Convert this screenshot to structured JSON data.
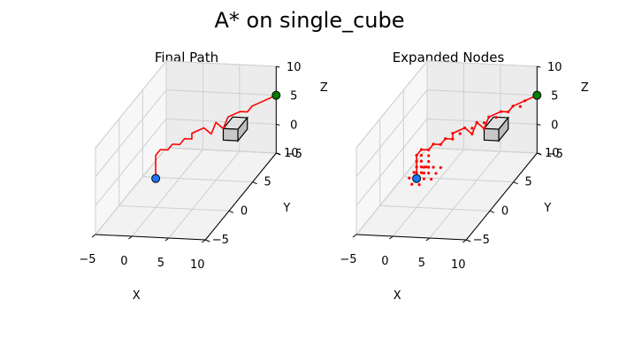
{
  "figure": {
    "title": "A* on single_cube"
  },
  "chart_data": [
    {
      "type": "line3d",
      "title": "Final Path",
      "xlabel": "X",
      "ylabel": "Y",
      "zlabel": "Z",
      "xlim": [
        -5,
        10
      ],
      "ylim": [
        -5,
        10
      ],
      "zlim": [
        -5,
        10
      ],
      "xticks": [
        "−5",
        "0",
        "5",
        "10"
      ],
      "yticks": [
        "−5",
        "0",
        "5",
        "10"
      ],
      "zticks": [
        "−5",
        "0",
        "5",
        "10"
      ],
      "grid": true,
      "path_color": "#ff0000",
      "start": {
        "x": 0,
        "y": 0,
        "z": 0,
        "color": "#1f77ff"
      },
      "goal": {
        "x": 10,
        "y": 10,
        "z": 5,
        "color": "#008000"
      },
      "obstacle": {
        "type": "cube",
        "center": [
          7,
          6,
          3
        ],
        "size": 2
      },
      "path": [
        [
          0,
          0,
          0
        ],
        [
          0,
          0,
          1
        ],
        [
          0,
          0,
          2
        ],
        [
          0,
          0,
          3
        ],
        [
          0,
          0,
          4
        ],
        [
          0,
          1,
          4
        ],
        [
          1,
          1,
          4
        ],
        [
          1,
          2,
          4
        ],
        [
          2,
          2,
          4
        ],
        [
          2,
          3,
          4
        ],
        [
          3,
          3,
          4
        ],
        [
          3,
          3,
          5
        ],
        [
          4,
          4,
          5
        ],
        [
          5,
          4,
          4
        ],
        [
          5,
          5,
          5
        ],
        [
          6,
          5,
          4
        ],
        [
          6,
          6,
          5
        ],
        [
          7,
          7,
          5
        ],
        [
          8,
          7,
          5
        ],
        [
          8,
          8,
          5
        ],
        [
          9,
          9,
          5
        ],
        [
          10,
          10,
          5
        ]
      ]
    },
    {
      "type": "scatter3d",
      "title": "Expanded Nodes",
      "xlabel": "X",
      "ylabel": "Y",
      "zlabel": "Z",
      "xlim": [
        -5,
        10
      ],
      "ylim": [
        -5,
        10
      ],
      "zlim": [
        -5,
        10
      ],
      "xticks": [
        "−5",
        "0",
        "5",
        "10"
      ],
      "yticks": [
        "−5",
        "0",
        "5",
        "10"
      ],
      "zticks": [
        "−5",
        "0",
        "5",
        "10"
      ],
      "grid": true,
      "path_color": "#ff0000",
      "start": {
        "x": 0,
        "y": 0,
        "z": 0,
        "color": "#1f77ff"
      },
      "goal": {
        "x": 10,
        "y": 10,
        "z": 5,
        "color": "#008000"
      },
      "obstacle": {
        "type": "cube",
        "center": [
          7,
          6,
          3
        ],
        "size": 2
      },
      "path": [
        [
          0,
          0,
          0
        ],
        [
          0,
          0,
          1
        ],
        [
          0,
          0,
          2
        ],
        [
          0,
          0,
          3
        ],
        [
          0,
          0,
          4
        ],
        [
          0,
          1,
          4
        ],
        [
          1,
          1,
          4
        ],
        [
          1,
          2,
          4
        ],
        [
          2,
          2,
          4
        ],
        [
          2,
          3,
          4
        ],
        [
          3,
          3,
          4
        ],
        [
          3,
          3,
          5
        ],
        [
          4,
          4,
          5
        ],
        [
          5,
          4,
          4
        ],
        [
          5,
          5,
          5
        ],
        [
          6,
          5,
          4
        ],
        [
          6,
          6,
          5
        ],
        [
          7,
          7,
          5
        ],
        [
          8,
          7,
          5
        ],
        [
          8,
          8,
          5
        ],
        [
          9,
          9,
          5
        ],
        [
          10,
          10,
          5
        ]
      ],
      "expanded": [
        [
          0,
          0,
          0
        ],
        [
          1,
          0,
          0
        ],
        [
          0,
          1,
          0
        ],
        [
          1,
          1,
          0
        ],
        [
          -1,
          0,
          0
        ],
        [
          0,
          -1,
          0
        ],
        [
          1,
          0,
          1
        ],
        [
          0,
          1,
          1
        ],
        [
          1,
          1,
          1
        ],
        [
          -1,
          1,
          0
        ],
        [
          1,
          -1,
          0
        ],
        [
          0,
          0,
          1
        ],
        [
          2,
          0,
          0
        ],
        [
          0,
          2,
          0
        ],
        [
          2,
          1,
          0
        ],
        [
          1,
          2,
          0
        ],
        [
          2,
          2,
          0
        ],
        [
          1,
          1,
          2
        ],
        [
          0,
          0,
          2
        ],
        [
          1,
          0,
          2
        ],
        [
          0,
          1,
          2
        ],
        [
          0,
          0,
          3
        ],
        [
          1,
          1,
          3
        ],
        [
          0,
          1,
          3
        ],
        [
          0,
          0,
          4
        ],
        [
          0,
          1,
          4
        ],
        [
          1,
          1,
          4
        ],
        [
          1,
          2,
          4
        ],
        [
          2,
          2,
          4
        ],
        [
          2,
          3,
          4
        ],
        [
          3,
          3,
          4
        ],
        [
          3,
          3,
          5
        ],
        [
          4,
          4,
          5
        ],
        [
          4,
          3,
          5
        ],
        [
          5,
          4,
          4
        ],
        [
          5,
          4,
          5
        ],
        [
          5,
          5,
          5
        ],
        [
          6,
          5,
          4
        ],
        [
          6,
          5,
          5
        ],
        [
          6,
          6,
          5
        ],
        [
          7,
          7,
          5
        ],
        [
          7,
          6,
          5
        ],
        [
          8,
          7,
          5
        ],
        [
          8,
          8,
          5
        ],
        [
          9,
          8,
          5
        ],
        [
          9,
          9,
          5
        ],
        [
          10,
          10,
          5
        ]
      ]
    }
  ]
}
